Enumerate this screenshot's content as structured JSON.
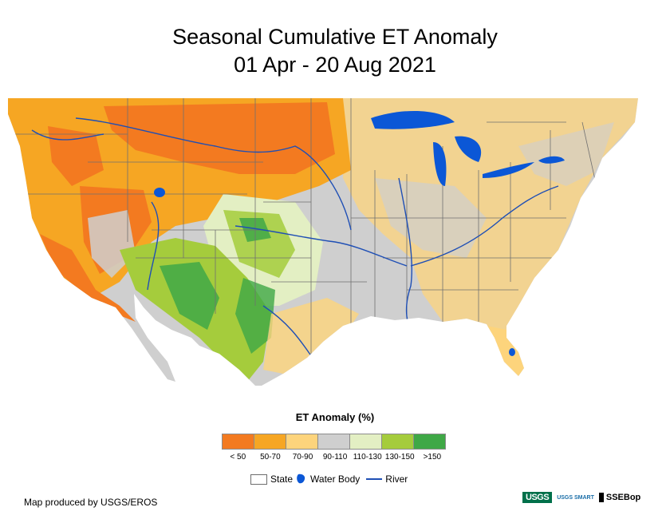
{
  "title": {
    "line1": "Seasonal Cumulative ET Anomaly",
    "line2": "01 Apr - 20 Aug 2021"
  },
  "legend": {
    "title": "ET Anomaly (%)",
    "classes": [
      {
        "label": "< 50",
        "color": "#f37a20"
      },
      {
        "label": "50-70",
        "color": "#f6a623"
      },
      {
        "label": "70-90",
        "color": "#fdd47c"
      },
      {
        "label": "90-110",
        "color": "#cfcfcf"
      },
      {
        "label": "110-130",
        "color": "#e3efc3"
      },
      {
        "label": "130-150",
        "color": "#a5cc3c"
      },
      {
        "label": ">150",
        "color": "#3fa846"
      }
    ],
    "features": {
      "state": "State",
      "water_body": "Water Body",
      "river": "River"
    }
  },
  "colors": {
    "water": "#0b57d6",
    "river": "#1f4fb5",
    "state_border": "#707070"
  },
  "footer": {
    "credit": "Map produced by USGS/EROS"
  },
  "logos": {
    "usgs": "USGS",
    "smart": "USGS SMART",
    "ssebop": "SSEBop"
  }
}
